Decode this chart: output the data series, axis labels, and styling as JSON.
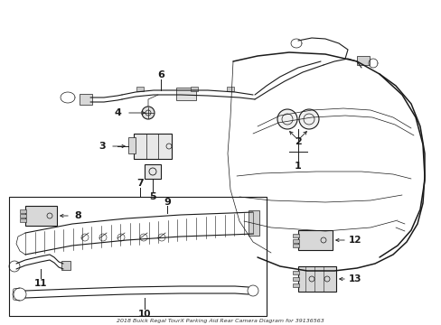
{
  "title": "2018 Buick Regal TourX Parking Aid Rear Camera Diagram for 39136563",
  "bg_color": "#ffffff",
  "line_color": "#1a1a1a",
  "fig_w": 4.89,
  "fig_h": 3.6,
  "dpi": 100,
  "xlim": [
    0,
    489
  ],
  "ylim": [
    0,
    360
  ]
}
